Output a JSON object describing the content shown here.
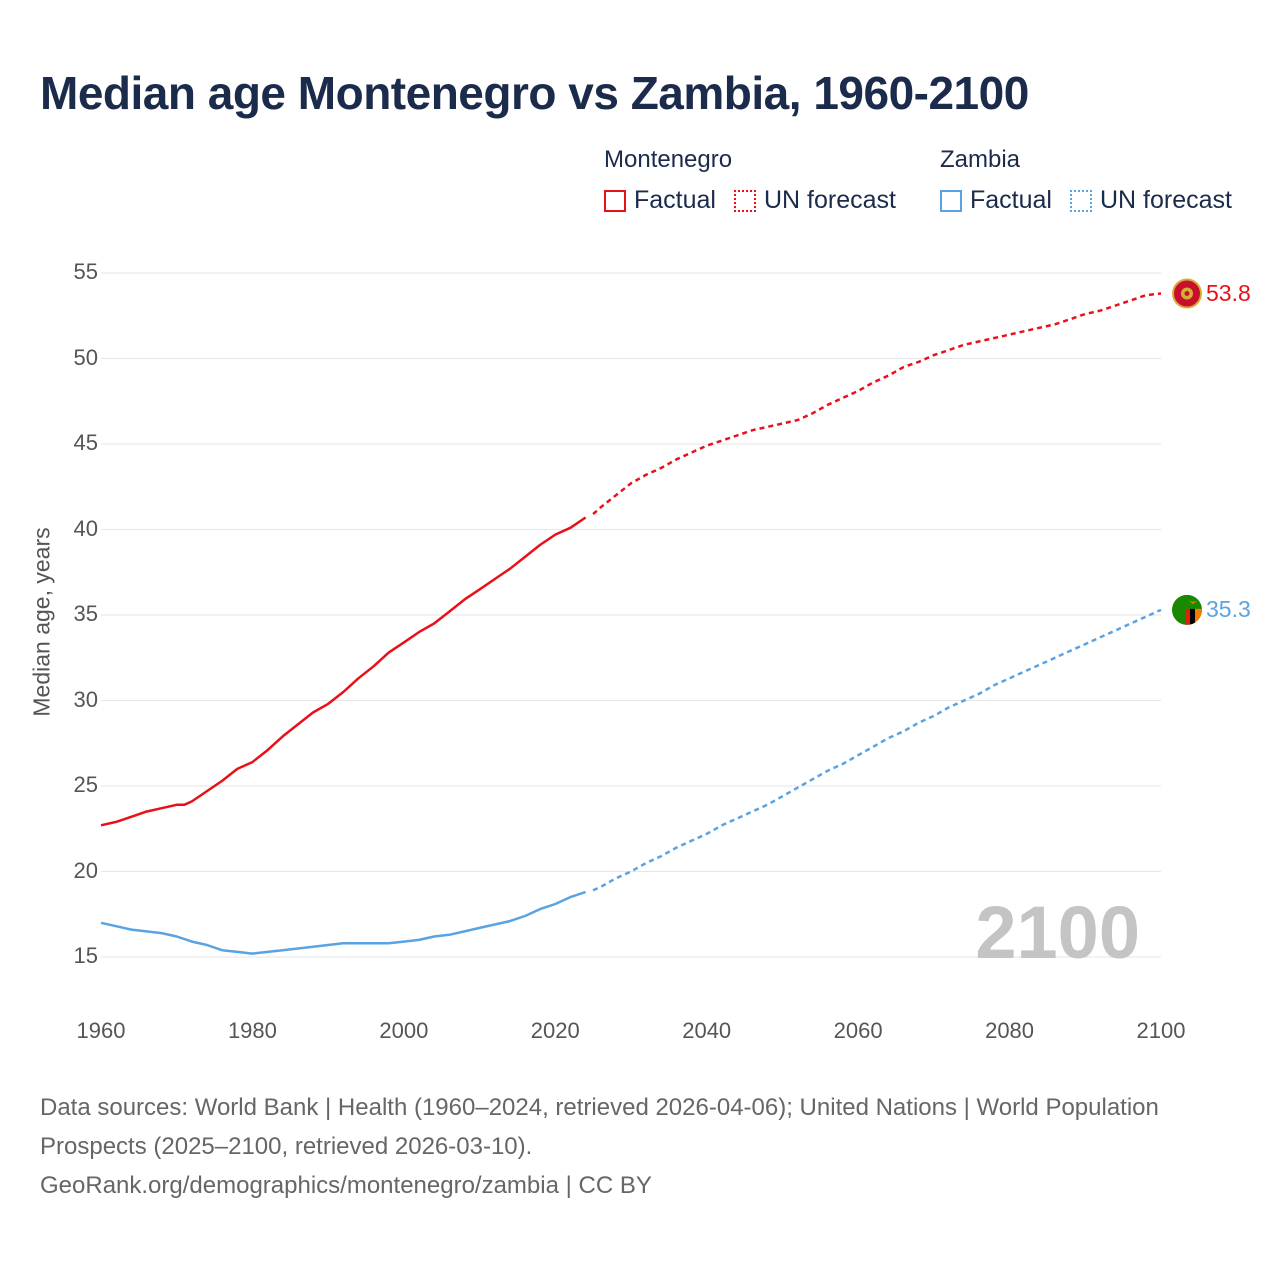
{
  "page": {
    "title": "Median age Montenegro vs Zambia, 1960-2100"
  },
  "legend": {
    "groups": [
      {
        "name": "Montenegro",
        "factual_label": "Factual",
        "forecast_label": "UN forecast",
        "color": "#e8111a"
      },
      {
        "name": "Zambia",
        "factual_label": "Factual",
        "forecast_label": "UN forecast",
        "color": "#5aa3e3"
      }
    ]
  },
  "year_watermark": "2100",
  "footer": {
    "sources": "Data sources: World Bank | Health (1960–2024, retrieved 2026-04-06); United Nations | World Population Prospects (2025–2100, retrieved 2026-03-10).",
    "attribution": "GeoRank.org/demographics/montenegro/zambia | CC BY"
  },
  "icons": {
    "montenegro": "montenegro-flag-icon",
    "zambia": "zambia-flag-icon"
  },
  "chart_data": {
    "type": "line",
    "title": "Median age Montenegro vs Zambia, 1960-2100",
    "xlabel": "",
    "ylabel": "Median age, years",
    "xlim": [
      1960,
      2100
    ],
    "ylim": [
      15,
      55
    ],
    "xticks": [
      1960,
      1980,
      2000,
      2020,
      2040,
      2060,
      2080,
      2100
    ],
    "yticks": [
      15,
      20,
      25,
      30,
      35,
      40,
      45,
      50,
      55
    ],
    "grid": true,
    "factual_end_year": 2024,
    "series": [
      {
        "name": "Montenegro",
        "color": "#e8111a",
        "end_label": "53.8",
        "factual": [
          [
            1960,
            22.7
          ],
          [
            1962,
            22.9
          ],
          [
            1964,
            23.2
          ],
          [
            1966,
            23.5
          ],
          [
            1968,
            23.7
          ],
          [
            1970,
            23.9
          ],
          [
            1971,
            23.9
          ],
          [
            1972,
            24.1
          ],
          [
            1974,
            24.7
          ],
          [
            1976,
            25.3
          ],
          [
            1978,
            26.0
          ],
          [
            1980,
            26.4
          ],
          [
            1982,
            27.1
          ],
          [
            1984,
            27.9
          ],
          [
            1986,
            28.6
          ],
          [
            1988,
            29.3
          ],
          [
            1990,
            29.8
          ],
          [
            1992,
            30.5
          ],
          [
            1994,
            31.3
          ],
          [
            1996,
            32.0
          ],
          [
            1998,
            32.8
          ],
          [
            2000,
            33.4
          ],
          [
            2002,
            34.0
          ],
          [
            2004,
            34.5
          ],
          [
            2006,
            35.2
          ],
          [
            2008,
            35.9
          ],
          [
            2010,
            36.5
          ],
          [
            2012,
            37.1
          ],
          [
            2014,
            37.7
          ],
          [
            2016,
            38.4
          ],
          [
            2018,
            39.1
          ],
          [
            2020,
            39.7
          ],
          [
            2022,
            40.1
          ],
          [
            2024,
            40.7
          ]
        ],
        "forecast": [
          [
            2025,
            40.9
          ],
          [
            2026,
            41.3
          ],
          [
            2028,
            42.0
          ],
          [
            2030,
            42.7
          ],
          [
            2032,
            43.2
          ],
          [
            2034,
            43.6
          ],
          [
            2036,
            44.1
          ],
          [
            2038,
            44.5
          ],
          [
            2040,
            44.9
          ],
          [
            2042,
            45.2
          ],
          [
            2044,
            45.5
          ],
          [
            2046,
            45.8
          ],
          [
            2048,
            46.0
          ],
          [
            2050,
            46.2
          ],
          [
            2052,
            46.4
          ],
          [
            2054,
            46.8
          ],
          [
            2056,
            47.3
          ],
          [
            2058,
            47.7
          ],
          [
            2060,
            48.1
          ],
          [
            2062,
            48.6
          ],
          [
            2064,
            49.0
          ],
          [
            2066,
            49.5
          ],
          [
            2068,
            49.8
          ],
          [
            2070,
            50.2
          ],
          [
            2072,
            50.5
          ],
          [
            2074,
            50.8
          ],
          [
            2076,
            51.0
          ],
          [
            2078,
            51.2
          ],
          [
            2080,
            51.4
          ],
          [
            2082,
            51.6
          ],
          [
            2084,
            51.8
          ],
          [
            2086,
            52.0
          ],
          [
            2088,
            52.3
          ],
          [
            2090,
            52.6
          ],
          [
            2092,
            52.8
          ],
          [
            2094,
            53.1
          ],
          [
            2096,
            53.4
          ],
          [
            2098,
            53.7
          ],
          [
            2100,
            53.8
          ]
        ]
      },
      {
        "name": "Zambia",
        "color": "#5aa3e3",
        "end_label": "35.3",
        "factual": [
          [
            1960,
            17.0
          ],
          [
            1962,
            16.8
          ],
          [
            1964,
            16.6
          ],
          [
            1966,
            16.5
          ],
          [
            1968,
            16.4
          ],
          [
            1970,
            16.2
          ],
          [
            1972,
            15.9
          ],
          [
            1974,
            15.7
          ],
          [
            1976,
            15.4
          ],
          [
            1978,
            15.3
          ],
          [
            1980,
            15.2
          ],
          [
            1982,
            15.3
          ],
          [
            1984,
            15.4
          ],
          [
            1986,
            15.5
          ],
          [
            1988,
            15.6
          ],
          [
            1990,
            15.7
          ],
          [
            1992,
            15.8
          ],
          [
            1994,
            15.8
          ],
          [
            1996,
            15.8
          ],
          [
            1998,
            15.8
          ],
          [
            2000,
            15.9
          ],
          [
            2002,
            16.0
          ],
          [
            2004,
            16.2
          ],
          [
            2006,
            16.3
          ],
          [
            2008,
            16.5
          ],
          [
            2010,
            16.7
          ],
          [
            2012,
            16.9
          ],
          [
            2014,
            17.1
          ],
          [
            2016,
            17.4
          ],
          [
            2018,
            17.8
          ],
          [
            2020,
            18.1
          ],
          [
            2022,
            18.5
          ],
          [
            2024,
            18.8
          ]
        ],
        "forecast": [
          [
            2025,
            18.9
          ],
          [
            2026,
            19.1
          ],
          [
            2028,
            19.6
          ],
          [
            2030,
            20.0
          ],
          [
            2032,
            20.5
          ],
          [
            2034,
            20.9
          ],
          [
            2036,
            21.4
          ],
          [
            2038,
            21.8
          ],
          [
            2040,
            22.2
          ],
          [
            2042,
            22.7
          ],
          [
            2044,
            23.1
          ],
          [
            2046,
            23.5
          ],
          [
            2048,
            23.9
          ],
          [
            2050,
            24.4
          ],
          [
            2052,
            24.9
          ],
          [
            2054,
            25.4
          ],
          [
            2056,
            25.9
          ],
          [
            2058,
            26.3
          ],
          [
            2060,
            26.8
          ],
          [
            2062,
            27.3
          ],
          [
            2064,
            27.8
          ],
          [
            2066,
            28.2
          ],
          [
            2068,
            28.7
          ],
          [
            2070,
            29.1
          ],
          [
            2072,
            29.6
          ],
          [
            2074,
            30.0
          ],
          [
            2076,
            30.4
          ],
          [
            2078,
            30.9
          ],
          [
            2080,
            31.3
          ],
          [
            2082,
            31.7
          ],
          [
            2084,
            32.1
          ],
          [
            2086,
            32.5
          ],
          [
            2088,
            32.9
          ],
          [
            2090,
            33.3
          ],
          [
            2092,
            33.7
          ],
          [
            2094,
            34.1
          ],
          [
            2096,
            34.5
          ],
          [
            2098,
            34.9
          ],
          [
            2100,
            35.3
          ]
        ]
      }
    ]
  }
}
